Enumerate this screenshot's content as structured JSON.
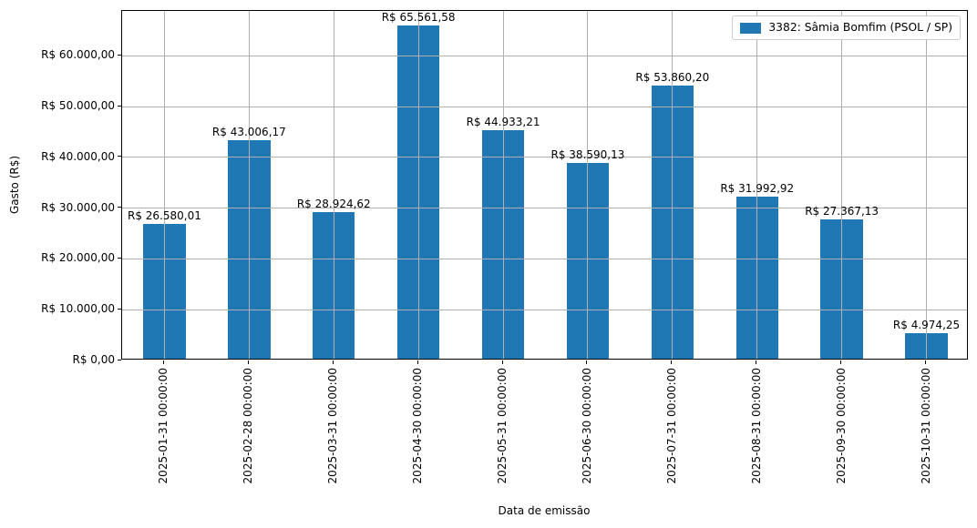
{
  "chart_data": {
    "type": "bar",
    "title": "",
    "xlabel": "Data de emissão",
    "ylabel": "Gasto (R$)",
    "categories": [
      "2025-01-31 00:00:00",
      "2025-02-28 00:00:00",
      "2025-03-31 00:00:00",
      "2025-04-30 00:00:00",
      "2025-05-31 00:00:00",
      "2025-06-30 00:00:00",
      "2025-07-31 00:00:00",
      "2025-08-31 00:00:00",
      "2025-09-30 00:00:00",
      "2025-10-31 00:00:00"
    ],
    "values": [
      26580.01,
      43006.17,
      28924.62,
      65561.58,
      44933.21,
      38590.13,
      53860.2,
      31992.92,
      27367.13,
      4974.25
    ],
    "bar_value_labels": [
      "R$ 26.580,01",
      "R$ 43.006,17",
      "R$ 28.924,62",
      "R$ 65.561,58",
      "R$ 44.933,21",
      "R$ 38.590,13",
      "R$ 53.860,20",
      "R$ 31.992,92",
      "R$ 27.367,13",
      "R$ 4.974,25"
    ],
    "ytick_values": [
      0,
      10000,
      20000,
      30000,
      40000,
      50000,
      60000
    ],
    "ytick_labels": [
      "R$ 0,00",
      "R$ 10.000,00",
      "R$ 20.000,00",
      "R$ 30.000,00",
      "R$ 40.000,00",
      "R$ 50.000,00",
      "R$ 60.000,00"
    ],
    "ylim": [
      0,
      68840
    ],
    "grid": true,
    "bar_width_fraction": 0.5,
    "legend": {
      "position": "upper right",
      "entries": [
        {
          "label": "3382: Sâmia Bomfim (PSOL / SP)",
          "color": "#1f77b4"
        }
      ]
    },
    "colors": {
      "bar": "#1f77b4",
      "grid": "#b0b0b0",
      "axis": "#000000",
      "text": "#000000"
    }
  }
}
